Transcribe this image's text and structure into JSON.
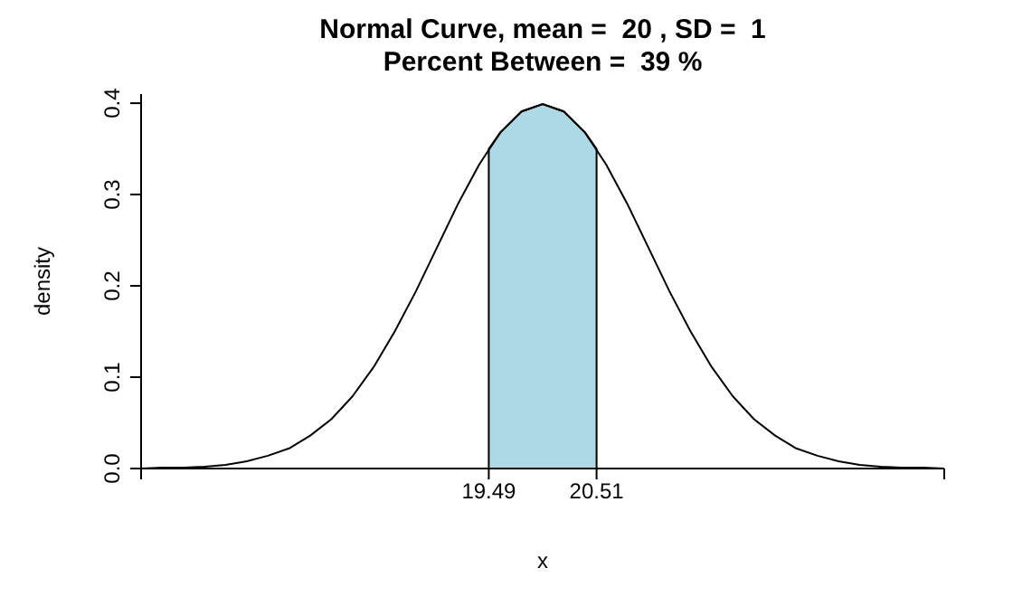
{
  "chart_data": {
    "type": "line",
    "title": "Normal Curve, mean =  20 , SD =  1\nPercent Between =  39 %",
    "xlabel": "x",
    "ylabel": "density",
    "xlim": [
      16.2,
      23.8
    ],
    "xticks": [
      {
        "value": 16.2,
        "label": null
      },
      19.49,
      20.51,
      {
        "value": 23.8,
        "label": null
      }
    ],
    "ylim": [
      0,
      0.41
    ],
    "yticks": [
      {
        "value": 0,
        "label": "0.0"
      },
      0.1,
      0.2,
      0.3,
      0.4
    ],
    "series": [
      {
        "color": "#000000",
        "x": [
          16.2,
          16.4,
          16.6,
          16.8,
          17,
          17.2,
          17.4,
          17.6,
          17.8,
          18,
          18.2,
          18.4,
          18.6,
          18.8,
          19,
          19.2,
          19.4,
          19.6,
          19.8,
          20,
          20.2,
          20.4,
          20.6,
          20.8,
          21,
          21.2,
          21.4,
          21.6,
          21.8,
          22,
          22.2,
          22.4,
          22.6,
          22.8,
          23,
          23.2,
          23.4,
          23.6,
          23.8
        ],
        "values": [
          0.0,
          0.001,
          0.001,
          0.002,
          0.004,
          0.008,
          0.014,
          0.022,
          0.036,
          0.054,
          0.079,
          0.111,
          0.15,
          0.194,
          0.242,
          0.29,
          0.333,
          0.368,
          0.391,
          0.399,
          0.391,
          0.368,
          0.333,
          0.29,
          0.242,
          0.194,
          0.15,
          0.111,
          0.079,
          0.054,
          0.036,
          0.022,
          0.014,
          0.008,
          0.004,
          0.002,
          0.001,
          0.001,
          0.0
        ]
      },
      {
        "type": "area",
        "color": "#add8e6",
        "x": [
          19.49,
          19.6,
          19.8,
          20,
          20.2,
          20.4,
          20.51
        ],
        "values": [
          0.35,
          0.368,
          0.391,
          0.399,
          0.391,
          0.368,
          0.35
        ]
      }
    ]
  }
}
